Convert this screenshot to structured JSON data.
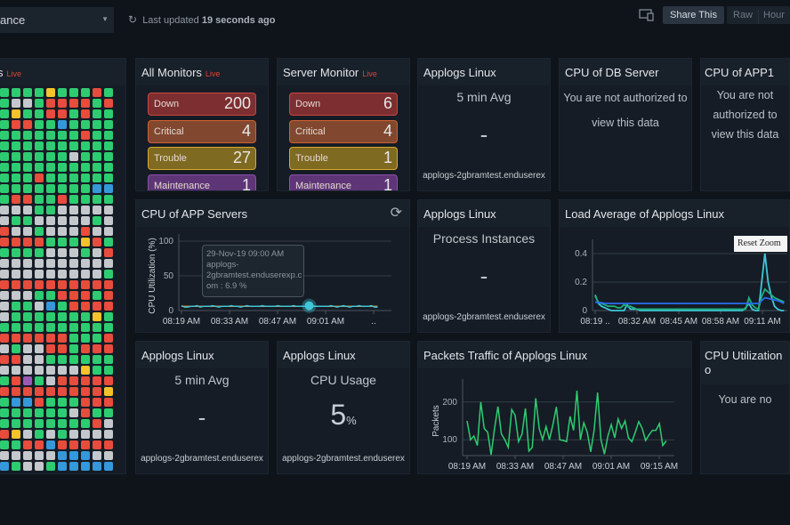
{
  "topbar": {
    "dropdown_value": "ance",
    "last_updated_prefix": "Last updated",
    "last_updated_value": "19 seconds ago",
    "share_label": "Share This",
    "raw_label": "Raw",
    "hour_label": "Hour"
  },
  "colors": {
    "G": "#2ecc71",
    "R": "#e74c3c",
    "Y": "#f4c22b",
    "S": "#c4c8cc",
    "B": "#3498db",
    "P": "#9b59b6"
  },
  "status_grid": {
    "title": "s",
    "live": "Live",
    "rows": [
      "GGGGYGGGRG",
      "GSSGRRRRGR",
      "GYGGRRGRGG",
      "GRRGGBGGGG",
      "GGGGGGGRGG",
      "GGGGGGGGGG",
      "GGGGGGSGGG",
      "GGGGGGGGGG",
      "GGGRGGGGGG",
      "GGGGGGGGBB",
      "GRRGGRGGGG",
      "SSSGGSSSSS",
      "SGGSSSSSGS",
      "RSSGSSSRSS",
      "RRRRGGGYRG",
      "GGGGSSSGSR",
      "SSSSSSSSSS",
      "SSSSSSSSSG",
      "RRRRRRRRRR",
      "SSSGGRRRGR",
      "SGGSBGRRRR",
      "SGGGGGGGYG",
      "GGGGGGGGGG",
      "RRRRRRGGGR",
      "SGSSRRGRRR",
      "RRSSGGGGGG",
      "SSSSSSSYGG",
      "GRPGSRRRRR",
      "RRRRRRRRRY",
      "GBBRGGGRRR",
      "GGGGGGSRGG",
      "GGGGGGGGRS",
      "RYSGSGSSSS",
      "GGRRBRRRRR",
      "SSSSSBBBSS",
      "BGSSGBBBBB"
    ]
  },
  "all_monitors": {
    "title": "All Monitors",
    "live": "Live",
    "stats": [
      {
        "label": "Down",
        "value": "200"
      },
      {
        "label": "Critical",
        "value": "4"
      },
      {
        "label": "Trouble",
        "value": "27"
      },
      {
        "label": "Maintenance",
        "value": "1"
      }
    ]
  },
  "server_monitor": {
    "title": "Server Monitor",
    "live": "Live",
    "stats": [
      {
        "label": "Down",
        "value": "6"
      },
      {
        "label": "Critical",
        "value": "4"
      },
      {
        "label": "Trouble",
        "value": "1"
      },
      {
        "label": "Maintenance",
        "value": "1"
      }
    ]
  },
  "applogs_avg1": {
    "title": "Applogs Linux",
    "subtitle": "5 min Avg",
    "value": "-",
    "footer": "applogs-2gbramtest.enduserex"
  },
  "cpu_db": {
    "title": "CPU of DB Server",
    "message": "You are not authorized to view this data"
  },
  "cpu_app1": {
    "title": "CPU of APP1",
    "message": "You are not authorized to view this data"
  },
  "cpu_app_servers": {
    "title": "CPU of APP Servers",
    "tooltip": {
      "line1": "29-Nov-19 09:00 AM",
      "line2": "applogs-",
      "line3": "2gbramtest.enduserexp.c",
      "line4": "om : 6.9 %"
    }
  },
  "applogs_proc": {
    "title": "Applogs Linux",
    "subtitle": "Process Instances",
    "value": "-",
    "footer": "applogs-2gbramtest.enduserex"
  },
  "load_avg": {
    "title": "Load Average of Applogs Linux",
    "reset_label": "Reset Zoom"
  },
  "applogs_avg2": {
    "title": "Applogs Linux",
    "subtitle": "5 min Avg",
    "value": "-",
    "footer": "applogs-2gbramtest.enduserex"
  },
  "applogs_cpu": {
    "title": "Applogs Linux",
    "subtitle": "CPU Usage",
    "value": "5",
    "unit": "%",
    "footer": "applogs-2gbramtest.enduserex"
  },
  "packets": {
    "title": "Packets Traffic of Applogs Linux"
  },
  "cpu_util": {
    "title": "CPU Utilization o",
    "message": "You are no"
  },
  "chart_data": [
    {
      "type": "line",
      "title": "CPU of APP Servers",
      "ylabel": "CPU Utilization (%)",
      "ylim": [
        0,
        100
      ],
      "yticks": [
        0,
        50,
        100
      ],
      "xticks": [
        "08:19 AM",
        "08:33 AM",
        "08:47 AM",
        "09:01 AM",
        ".."
      ],
      "x_start": "08:19 AM",
      "x_step_min": 1,
      "series": [
        {
          "color": "#e67e22",
          "values": [
            6,
            6,
            6,
            6,
            6,
            6,
            6,
            6,
            6,
            6,
            6,
            6,
            6,
            6,
            6,
            6,
            6,
            6,
            6,
            6,
            6,
            6,
            6,
            6,
            6,
            6,
            6,
            6,
            6,
            6,
            6,
            6,
            6,
            6,
            6,
            6,
            6,
            6,
            6,
            6,
            6,
            6,
            6,
            6,
            6,
            6,
            6,
            6,
            6,
            6,
            6,
            6,
            6,
            6,
            6,
            6,
            6,
            6,
            6,
            6,
            6,
            6,
            6,
            6
          ]
        },
        {
          "color": "#3fc6d8",
          "values": [
            7,
            5,
            5,
            6,
            6,
            7,
            5,
            6,
            6,
            6,
            7,
            6,
            5,
            6,
            6,
            6,
            7,
            6,
            6,
            5,
            6,
            7,
            6,
            6,
            6,
            6,
            7,
            6,
            6,
            6,
            6,
            7,
            6,
            6,
            6,
            6,
            7,
            6,
            6,
            6,
            6,
            6,
            7,
            6,
            6,
            6,
            6,
            6,
            7,
            6,
            5,
            6,
            7,
            6,
            5,
            6,
            6,
            7,
            6,
            6,
            6,
            7,
            5,
            5
          ]
        }
      ],
      "highlight": {
        "x": "09:00 AM",
        "y": 6.9
      }
    },
    {
      "type": "line",
      "title": "Load Average of Applogs Linux",
      "ylim": [
        0,
        0.45
      ],
      "yticks": [
        0,
        0.2,
        0.4
      ],
      "xticks": [
        "08:19 ..",
        "08:32 AM",
        "08:45 AM",
        "08:58 AM",
        "09:11 AM"
      ],
      "x_start": "08:19 AM",
      "x_step_min": 1,
      "series": [
        {
          "color": "#3fc6d8",
          "values": [
            0.11,
            0.05,
            0.03,
            0.02,
            0.01,
            0,
            0,
            0,
            0,
            0,
            0.04,
            0.01,
            0.01,
            0.01,
            0,
            0,
            0,
            0,
            0,
            0,
            0,
            0,
            0,
            0,
            0,
            0,
            0,
            0,
            0,
            0,
            0,
            0,
            0,
            0,
            0,
            0,
            0,
            0,
            0,
            0,
            0,
            0,
            0,
            0,
            0,
            0,
            0,
            0.02,
            0.05,
            0.01,
            0,
            0,
            0.2,
            0.4,
            0.2,
            0.1,
            0.03,
            0.01,
            0,
            0
          ]
        },
        {
          "color": "#1fae7a",
          "values": [
            0.1,
            0.06,
            0.05,
            0.04,
            0.03,
            0.03,
            0.03,
            0.02,
            0.02,
            0.04,
            0.03,
            0.03,
            0.02,
            0.01,
            0.01,
            0.01,
            0.01,
            0.01,
            0.01,
            0.01,
            0.01,
            0.01,
            0.01,
            0.01,
            0.01,
            0.01,
            0.01,
            0.01,
            0.01,
            0.01,
            0.01,
            0.01,
            0.01,
            0.01,
            0.01,
            0.01,
            0.01,
            0.01,
            0.01,
            0.01,
            0.01,
            0.01,
            0.01,
            0.01,
            0.01,
            0.01,
            0.01,
            0.01,
            0.09,
            0.04,
            0.02,
            0.01,
            0.1,
            0.15,
            0.13,
            0.11,
            0.09,
            0.08,
            0.07,
            0.06
          ]
        },
        {
          "color": "#2a6cf0",
          "values": [
            0.06,
            0.055,
            0.055,
            0.05,
            0.05,
            0.05,
            0.05,
            0.05,
            0.05,
            0.05,
            0.05,
            0.05,
            0.05,
            0.05,
            0.05,
            0.05,
            0.05,
            0.05,
            0.05,
            0.05,
            0.05,
            0.05,
            0.05,
            0.05,
            0.05,
            0.05,
            0.05,
            0.05,
            0.05,
            0.05,
            0.05,
            0.05,
            0.05,
            0.05,
            0.05,
            0.05,
            0.05,
            0.05,
            0.05,
            0.05,
            0.05,
            0.05,
            0.05,
            0.05,
            0.05,
            0.05,
            0.05,
            0.05,
            0.05,
            0.05,
            0.05,
            0.05,
            0.07,
            0.09,
            0.085,
            0.08,
            0.075,
            0.07,
            0.06,
            0.05
          ]
        }
      ]
    },
    {
      "type": "line",
      "title": "Packets Traffic of Applogs Linux",
      "ylabel": "Packets",
      "ylim": [
        58,
        242
      ],
      "yticks": [
        100,
        200
      ],
      "xticks": [
        "08:19 AM",
        "08:33 AM",
        "08:47 AM",
        "09:01 AM",
        "09:15 AM"
      ],
      "x_start": "08:19 AM",
      "x_step_min": 1,
      "series": [
        {
          "color": "#2ecc71",
          "values": [
            150,
            100,
            110,
            85,
            200,
            130,
            120,
            60,
            130,
            188,
            115,
            100,
            80,
            180,
            165,
            95,
            115,
            183,
            70,
            80,
            210,
            130,
            100,
            135,
            100,
            140,
            187,
            100,
            98,
            95,
            162,
            125,
            230,
            100,
            145,
            120,
            68,
            125,
            225,
            100,
            62,
            110,
            140,
            105,
            155,
            130,
            150,
            105,
            95,
            120,
            148,
            130,
            98,
            113,
            125,
            125,
            143,
            85,
            97
          ]
        }
      ]
    }
  ]
}
